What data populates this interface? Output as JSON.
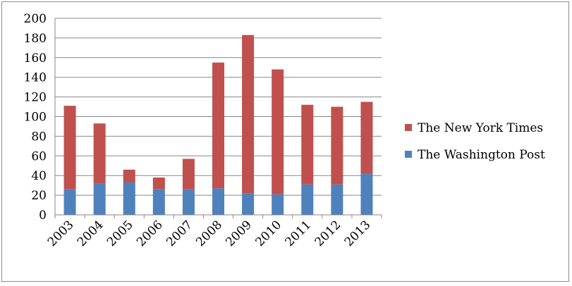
{
  "chart_data": {
    "type": "bar",
    "stacked": true,
    "categories": [
      "2003",
      "2004",
      "2005",
      "2006",
      "2007",
      "2008",
      "2009",
      "2010",
      "2011",
      "2012",
      "2013"
    ],
    "series": [
      {
        "name": "The Washington Post",
        "color": "#4f81bd",
        "values": [
          26,
          32,
          33,
          26,
          26,
          27,
          22,
          21,
          31,
          31,
          42
        ]
      },
      {
        "name": "The New York Times",
        "color": "#c0504d",
        "values": [
          85,
          61,
          13,
          12,
          31,
          128,
          161,
          127,
          81,
          79,
          73
        ]
      }
    ],
    "title": "",
    "xlabel": "",
    "ylabel": "",
    "ylim": [
      0,
      200
    ],
    "yticks": [
      "0",
      "20",
      "40",
      "60",
      "80",
      "100",
      "120",
      "140",
      "160",
      "180",
      "200"
    ],
    "grid": true,
    "legend_position": "right",
    "legend_order": [
      "The New York Times",
      "The Washington Post"
    ]
  }
}
